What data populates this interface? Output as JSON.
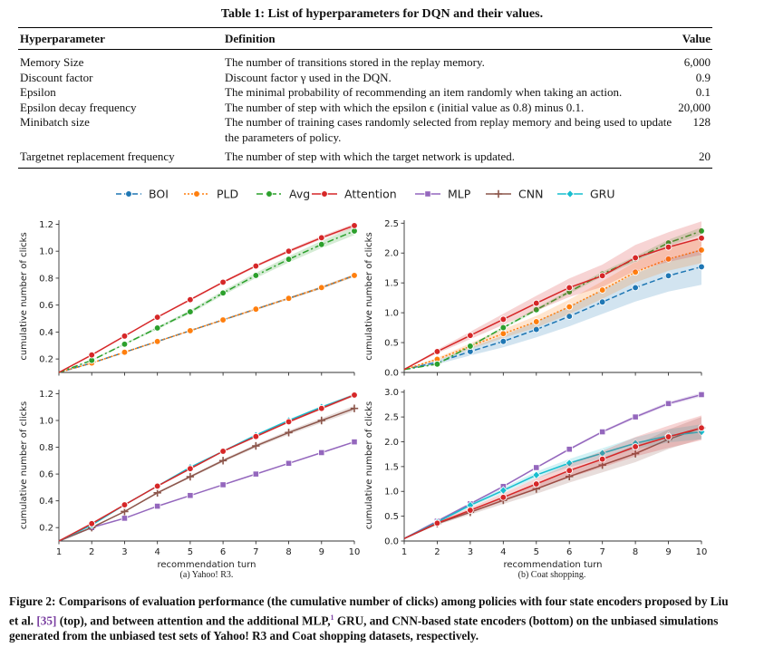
{
  "table": {
    "title": "Table 1: List of hyperparameters for DQN and their values.",
    "headers": [
      "Hyperparameter",
      "Definition",
      "Value"
    ],
    "rows": [
      {
        "name": "Memory Size",
        "definition": "The number of transitions stored in the replay memory.",
        "value": "6,000"
      },
      {
        "name": "Discount factor",
        "definition": "Discount factor γ used in the DQN.",
        "value": "0.9"
      },
      {
        "name": "Epsilon",
        "definition": "The minimal probability of recommending an item randomly when taking an action.",
        "value": "0.1"
      },
      {
        "name": "Epsilon decay frequency",
        "definition": "The number of step with which the epsilon ϵ (initial value as 0.8) minus 0.1.",
        "value": "20,000"
      },
      {
        "name": "Minibatch size",
        "definition": "The number of training cases randomly selected from replay memory and being used to update the parameters of policy.",
        "value": "128"
      },
      {
        "name": "Targetnet replacement frequency",
        "definition": "The number of step with which the target network is updated.",
        "value": "20"
      }
    ]
  },
  "legend": {
    "entries": [
      {
        "name": "BOI",
        "color": "#1f77b4",
        "style": "dashed",
        "marker": "circle"
      },
      {
        "name": "PLD",
        "color": "#ff7f0e",
        "style": "dotted",
        "marker": "circle"
      },
      {
        "name": "Avg",
        "color": "#2ca02c",
        "style": "dashdot",
        "marker": "circle"
      },
      {
        "name": "Attention",
        "color": "#d62728",
        "style": "solid",
        "marker": "circle"
      },
      {
        "name": "MLP",
        "color": "#9467bd",
        "style": "solid",
        "marker": "square"
      },
      {
        "name": "CNN",
        "color": "#8c564b",
        "style": "solid",
        "marker": "plus"
      },
      {
        "name": "GRU",
        "color": "#17becf",
        "style": "solid",
        "marker": "diamond"
      }
    ]
  },
  "chart_data": [
    {
      "type": "line",
      "ylabel": "cumulative number of clicks",
      "xlim": [
        1,
        10
      ],
      "ylim": [
        0.1,
        1.23
      ],
      "yticks": [
        0.2,
        0.4,
        0.6,
        0.8,
        1.0,
        1.2
      ],
      "x": [
        1,
        2,
        3,
        4,
        5,
        6,
        7,
        8,
        9,
        10
      ],
      "series": [
        {
          "name": "BOI",
          "values": [
            0.1,
            0.17,
            0.25,
            0.33,
            0.41,
            0.49,
            0.57,
            0.65,
            0.73,
            0.82
          ],
          "band": 0.01
        },
        {
          "name": "PLD",
          "values": [
            0.1,
            0.17,
            0.25,
            0.33,
            0.41,
            0.49,
            0.57,
            0.65,
            0.73,
            0.82
          ],
          "band": 0.01
        },
        {
          "name": "Avg",
          "values": [
            0.1,
            0.19,
            0.31,
            0.43,
            0.55,
            0.69,
            0.82,
            0.94,
            1.05,
            1.15
          ],
          "band": 0.03
        },
        {
          "name": "Attention",
          "values": [
            0.1,
            0.23,
            0.37,
            0.51,
            0.64,
            0.77,
            0.89,
            1.0,
            1.1,
            1.19
          ],
          "band": 0.015
        }
      ]
    },
    {
      "type": "line",
      "ylabel": "cumulative number of clicks",
      "xlim": [
        1,
        10
      ],
      "ylim": [
        0,
        2.55
      ],
      "yticks": [
        0.0,
        0.5,
        1.0,
        1.5,
        2.0,
        2.5
      ],
      "x": [
        1,
        2,
        3,
        4,
        5,
        6,
        7,
        8,
        9,
        10
      ],
      "series": [
        {
          "name": "BOI",
          "values": [
            0.05,
            0.17,
            0.35,
            0.52,
            0.72,
            0.94,
            1.18,
            1.42,
            1.62,
            1.77
          ],
          "band": 0.3
        },
        {
          "name": "PLD",
          "values": [
            0.05,
            0.22,
            0.44,
            0.65,
            0.85,
            1.1,
            1.38,
            1.68,
            1.9,
            2.05
          ],
          "band": 0.22
        },
        {
          "name": "Avg",
          "values": [
            0.05,
            0.14,
            0.44,
            0.75,
            1.05,
            1.35,
            1.65,
            1.9,
            2.17,
            2.37
          ],
          "band": 0.06
        },
        {
          "name": "Attention",
          "values": [
            0.05,
            0.35,
            0.62,
            0.89,
            1.16,
            1.42,
            1.62,
            1.92,
            2.1,
            2.25
          ],
          "band": 0.28
        }
      ]
    },
    {
      "type": "line",
      "xlabel": "recommendation turn",
      "ylabel": "cumulative number of clicks",
      "xlim": [
        1,
        10
      ],
      "ylim": [
        0.1,
        1.23
      ],
      "xticks": [
        1,
        2,
        3,
        4,
        5,
        6,
        7,
        8,
        9,
        10
      ],
      "yticks": [
        0.2,
        0.4,
        0.6,
        0.8,
        1.0,
        1.2
      ],
      "x": [
        1,
        2,
        3,
        4,
        5,
        6,
        7,
        8,
        9,
        10
      ],
      "series": [
        {
          "name": "MLP",
          "values": [
            0.1,
            0.2,
            0.27,
            0.36,
            0.44,
            0.52,
            0.6,
            0.68,
            0.76,
            0.84
          ],
          "band": 0.005
        },
        {
          "name": "CNN",
          "values": [
            0.1,
            0.2,
            0.32,
            0.46,
            0.58,
            0.7,
            0.81,
            0.91,
            1.0,
            1.09
          ],
          "band": 0.02
        },
        {
          "name": "GRU",
          "values": [
            0.1,
            0.22,
            0.37,
            0.51,
            0.65,
            0.77,
            0.89,
            1.0,
            1.1,
            1.19
          ],
          "band": 0.01
        },
        {
          "name": "Attention",
          "values": [
            0.1,
            0.23,
            0.37,
            0.51,
            0.64,
            0.77,
            0.88,
            0.99,
            1.09,
            1.19
          ],
          "band": 0.01
        }
      ]
    },
    {
      "type": "line",
      "xlabel": "recommendation turn",
      "ylabel": "cumulative number of clicks",
      "xlim": [
        1,
        10
      ],
      "ylim": [
        0,
        3.05
      ],
      "xticks": [
        1,
        2,
        3,
        4,
        5,
        6,
        7,
        8,
        9,
        10
      ],
      "yticks": [
        0.0,
        0.5,
        1.0,
        1.5,
        2.0,
        2.5,
        3.0
      ],
      "x": [
        1,
        2,
        3,
        4,
        5,
        6,
        7,
        8,
        9,
        10
      ],
      "series": [
        {
          "name": "MLP",
          "values": [
            0.05,
            0.4,
            0.75,
            1.1,
            1.48,
            1.85,
            2.2,
            2.5,
            2.77,
            2.95
          ],
          "band": 0.04
        },
        {
          "name": "CNN",
          "values": [
            0.05,
            0.35,
            0.58,
            0.82,
            1.05,
            1.3,
            1.53,
            1.76,
            2.05,
            2.28
          ],
          "band": 0.22
        },
        {
          "name": "GRU",
          "values": [
            0.05,
            0.38,
            0.72,
            1.02,
            1.33,
            1.57,
            1.77,
            1.97,
            2.12,
            2.2
          ],
          "band": 0.15
        },
        {
          "name": "Attention",
          "values": [
            0.05,
            0.36,
            0.62,
            0.88,
            1.15,
            1.42,
            1.65,
            1.9,
            2.1,
            2.28
          ],
          "band": 0.25
        }
      ]
    }
  ],
  "subcaptions": [
    "(a) Yahoo! R3.",
    "(b) Coat shopping."
  ],
  "caption": {
    "part1": "Figure 2: Comparisons of evaluation performance (the cumulative number of clicks) among policies with four state encoders proposed by Liu et al. ",
    "ref": "[35]",
    "part2": " (top), and between attention and the additional MLP,",
    "footnote": "1",
    "part3": " GRU, and CNN-based state encoders (bottom) on the unbiased simulations generated from the unbiased test sets of Yahoo! R3 and Coat shopping datasets, respectively."
  }
}
